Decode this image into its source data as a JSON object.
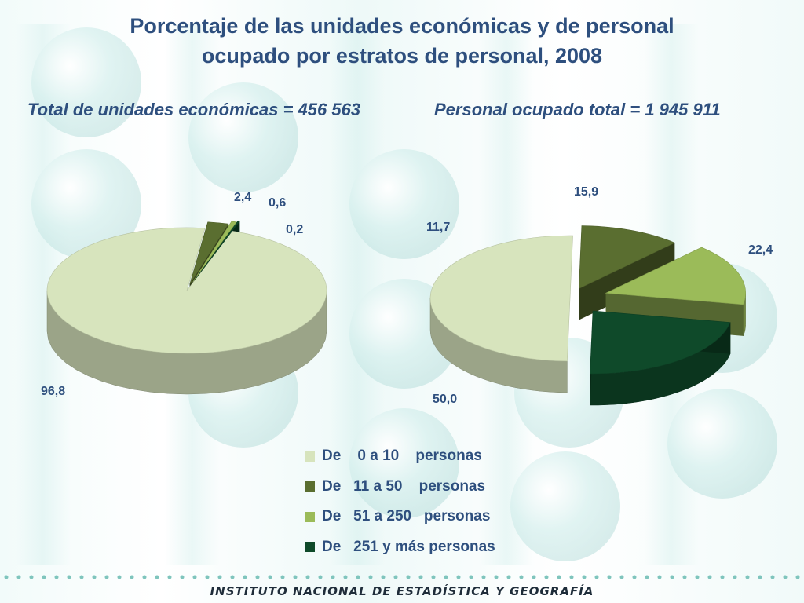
{
  "title_line1": "Porcentaje de las unidades económicas y de personal",
  "title_line2": "ocupado por estratos de personal,  2008",
  "footer": "INSTITUTO NACIONAL  DE ESTADÍSTICA Y GEOGRAFÍA",
  "legend": [
    {
      "label": "De    0 a 10    personas",
      "color": "#d7e4bd"
    },
    {
      "label": "De   11 a 50    personas",
      "color": "#5a6e30"
    },
    {
      "label": "De   51 a 250   personas",
      "color": "#9bbb59"
    },
    {
      "label": "De   251 y más personas",
      "color": "#0f4a2a"
    }
  ],
  "chart_data": [
    {
      "type": "pie",
      "title": "Total de unidades económicas = 456 563",
      "categories": [
        "De 0 a 10 personas",
        "De 11 a 50 personas",
        "De 51 a 250 personas",
        "De 251 y más personas"
      ],
      "values": [
        96.8,
        2.4,
        0.6,
        0.2
      ],
      "labels": [
        "96,8",
        "2,4",
        "0,6",
        "0,2"
      ]
    },
    {
      "type": "pie",
      "title": "Personal ocupado total = 1 945 911",
      "categories": [
        "De 0 a 10 personas",
        "De 11 a 50 personas",
        "De 51 a 250 personas",
        "De 251 y más personas"
      ],
      "values": [
        50.0,
        11.7,
        15.9,
        22.4
      ],
      "labels": [
        "50,0",
        "11,7",
        "15,9",
        "22,4"
      ]
    }
  ]
}
